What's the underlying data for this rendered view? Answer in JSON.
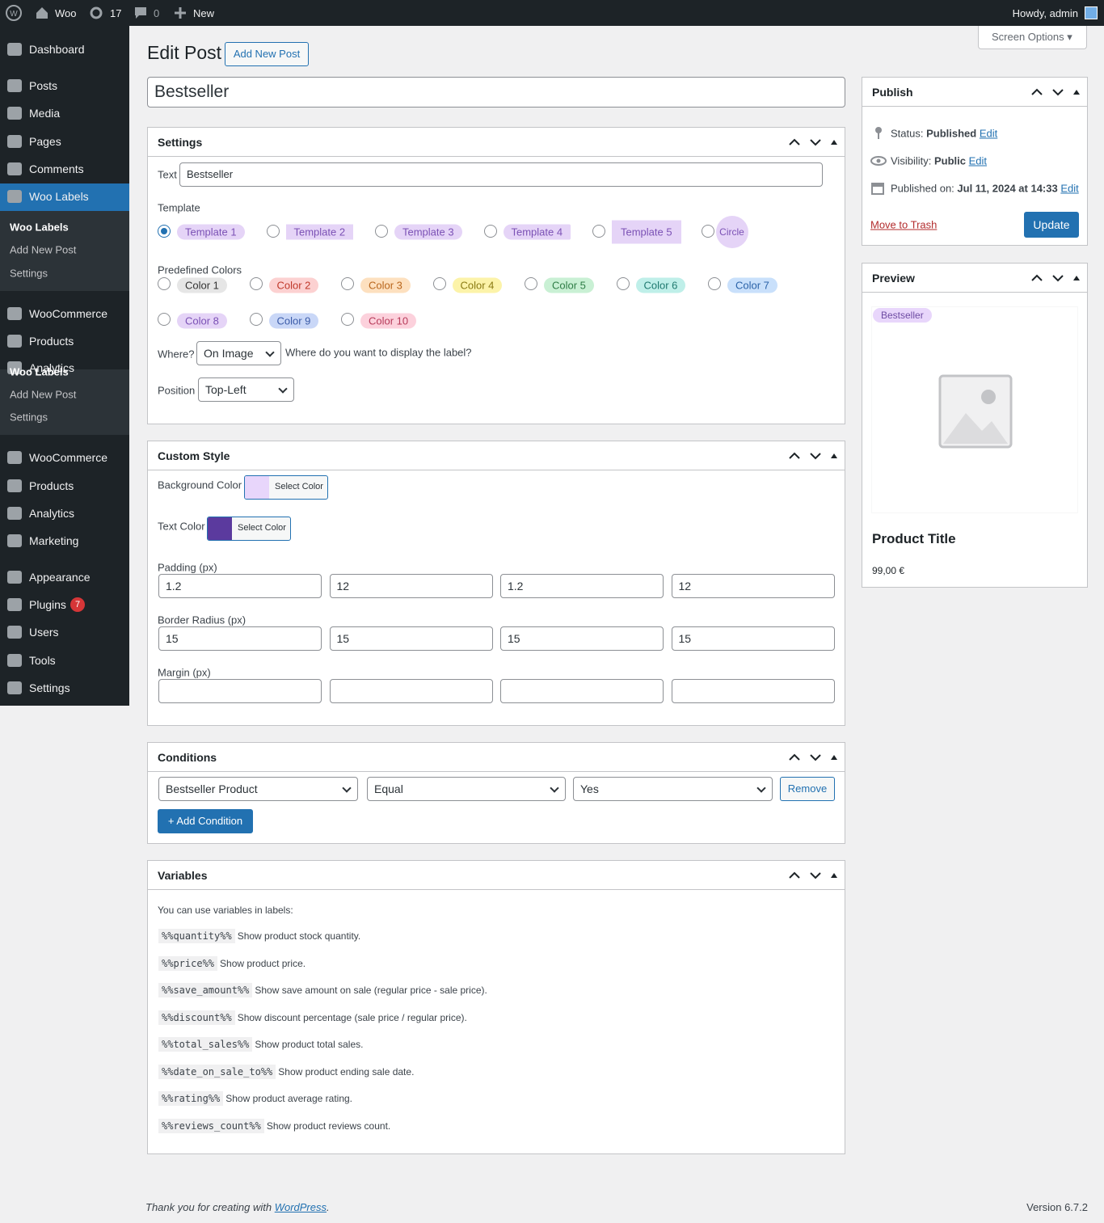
{
  "admin_bar": {
    "site": "Woo",
    "updates": "17",
    "comments": "0",
    "new": "New",
    "howdy": "Howdy, admin"
  },
  "menu": {
    "items_a": [
      "Dashboard",
      "Posts",
      "Media",
      "Pages",
      "Comments",
      "Woo Labels"
    ],
    "submenu": [
      "Woo Labels",
      "Add New Post",
      "Settings"
    ],
    "items_b": [
      "WooCommerce",
      "Products",
      "Analytics"
    ],
    "flyout": [
      "Woo Labels",
      "Add New Post",
      "Settings"
    ],
    "items_c": [
      "WooCommerce",
      "Products",
      "Analytics",
      "Marketing",
      "Appearance",
      "Plugins",
      "Users",
      "Tools",
      "Settings"
    ],
    "plugins_badge": "7"
  },
  "header": {
    "title": "Edit Post",
    "add_new": "Add New Post",
    "screen_options": "Screen Options",
    "post_title": "Bestseller"
  },
  "settings": {
    "title": "Settings",
    "text_label": "Text",
    "text_value": "Bestseller",
    "template_label": "Template",
    "templates": [
      "Template 1",
      "Template 2",
      "Template 3",
      "Template 4",
      "Template 5",
      "Circle"
    ],
    "colors_label": "Predefined Colors",
    "colors": [
      "Color 1",
      "Color 2",
      "Color 3",
      "Color 4",
      "Color 5",
      "Color 6",
      "Color 7",
      "Color 8",
      "Color 9",
      "Color 10"
    ],
    "where_label": "Where?",
    "where_value": "On Image",
    "where_help": "Where do you want to display the label?",
    "position_label": "Position",
    "position_value": "Top-Left"
  },
  "custom_style": {
    "title": "Custom Style",
    "bg_label": "Background Color",
    "text_color_label": "Text Color",
    "select_color": "Select Color",
    "padding_label": "Padding (px)",
    "padding": [
      "1.2",
      "12",
      "1.2",
      "12"
    ],
    "radius_label": "Border Radius (px)",
    "radius": [
      "15",
      "15",
      "15",
      "15"
    ],
    "margin_label": "Margin (px)"
  },
  "conditions": {
    "title": "Conditions",
    "field": "Bestseller Product",
    "operator": "Equal",
    "value": "Yes",
    "remove": "Remove",
    "add": "+ Add Condition"
  },
  "variables": {
    "title": "Variables",
    "intro": "You can use variables in labels:",
    "items": [
      [
        "%%quantity%%",
        "Show product stock quantity."
      ],
      [
        "%%price%%",
        "Show product price."
      ],
      [
        "%%save_amount%%",
        "Show save amount on sale (regular price - sale price)."
      ],
      [
        "%%discount%%",
        "Show discount percentage (sale price / regular price)."
      ],
      [
        "%%total_sales%%",
        "Show product total sales."
      ],
      [
        "%%date_on_sale_to%%",
        "Show product ending sale date."
      ],
      [
        "%%rating%%",
        "Show product average rating."
      ],
      [
        "%%reviews_count%%",
        "Show product reviews count."
      ]
    ]
  },
  "publish": {
    "title": "Publish",
    "status_label": "Status:",
    "status": "Published",
    "visibility_label": "Visibility:",
    "visibility": "Public",
    "date_label": "Published on:",
    "date": "Jul 11, 2024 at 14:33",
    "edit": "Edit",
    "trash": "Move to Trash",
    "update": "Update"
  },
  "preview": {
    "title": "Preview",
    "badge": "Bestseller",
    "product_title": "Product Title",
    "price": "99,00 €"
  },
  "footer": {
    "thanks": "Thank you for creating with ",
    "link": "WordPress",
    "period": ".",
    "version": "Version 6.7.2"
  }
}
